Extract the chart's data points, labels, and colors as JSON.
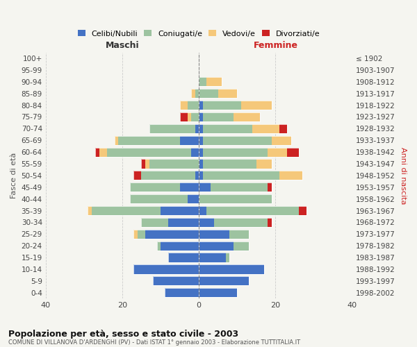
{
  "age_groups": [
    "0-4",
    "5-9",
    "10-14",
    "15-19",
    "20-24",
    "25-29",
    "30-34",
    "35-39",
    "40-44",
    "45-49",
    "50-54",
    "55-59",
    "60-64",
    "65-69",
    "70-74",
    "75-79",
    "80-84",
    "85-89",
    "90-94",
    "95-99",
    "100+"
  ],
  "birth_years": [
    "1998-2002",
    "1993-1997",
    "1988-1992",
    "1983-1987",
    "1978-1982",
    "1973-1977",
    "1968-1972",
    "1963-1967",
    "1958-1962",
    "1953-1957",
    "1948-1952",
    "1943-1947",
    "1938-1942",
    "1933-1937",
    "1928-1932",
    "1923-1927",
    "1918-1922",
    "1913-1917",
    "1908-1912",
    "1903-1907",
    "≤ 1902"
  ],
  "colors": {
    "celibi": "#4472C4",
    "coniugati": "#9DC3A0",
    "vedovi": "#F5C87A",
    "divorziati": "#CC2222"
  },
  "maschi": {
    "celibi": [
      9,
      12,
      17,
      8,
      10,
      14,
      8,
      10,
      3,
      5,
      1,
      0,
      2,
      5,
      1,
      0,
      0,
      0,
      0,
      0,
      0
    ],
    "coniugati": [
      0,
      0,
      0,
      0,
      1,
      2,
      7,
      18,
      15,
      13,
      14,
      13,
      22,
      16,
      12,
      2,
      3,
      1,
      0,
      0,
      0
    ],
    "vedovi": [
      0,
      0,
      0,
      0,
      0,
      1,
      0,
      1,
      0,
      0,
      0,
      1,
      2,
      1,
      0,
      1,
      2,
      1,
      0,
      0,
      0
    ],
    "divorziati": [
      0,
      0,
      0,
      0,
      0,
      0,
      0,
      0,
      0,
      0,
      2,
      1,
      1,
      0,
      0,
      2,
      0,
      0,
      0,
      0,
      0
    ]
  },
  "femmine": {
    "celibi": [
      10,
      13,
      17,
      7,
      9,
      8,
      4,
      2,
      0,
      3,
      1,
      1,
      1,
      1,
      1,
      1,
      1,
      0,
      0,
      0,
      0
    ],
    "coniugati": [
      0,
      0,
      0,
      1,
      4,
      5,
      14,
      24,
      19,
      15,
      20,
      14,
      17,
      18,
      13,
      8,
      10,
      5,
      2,
      0,
      0
    ],
    "vedovi": [
      0,
      0,
      0,
      0,
      0,
      0,
      0,
      0,
      0,
      0,
      6,
      4,
      5,
      5,
      7,
      7,
      8,
      5,
      4,
      0,
      0
    ],
    "divorziati": [
      0,
      0,
      0,
      0,
      0,
      0,
      1,
      2,
      0,
      1,
      0,
      0,
      3,
      0,
      2,
      0,
      0,
      0,
      0,
      0,
      0
    ]
  },
  "title": "Popolazione per età, sesso e stato civile - 2003",
  "subtitle": "COMUNE DI VILLANOVA D'ARDENGHI (PV) - Dati ISTAT 1° gennaio 2003 - Elaborazione TUTTITALIA.IT",
  "xlabel_left": "Maschi",
  "xlabel_right": "Femmine",
  "ylabel_left": "Fasce di età",
  "ylabel_right": "Anni di nascita",
  "xlim": 40,
  "background_color": "#f5f5f0",
  "grid_color": "#cccccc",
  "legend_labels": [
    "Celibi/Nubili",
    "Coniugati/e",
    "Vedovi/e",
    "Divorziati/e"
  ]
}
